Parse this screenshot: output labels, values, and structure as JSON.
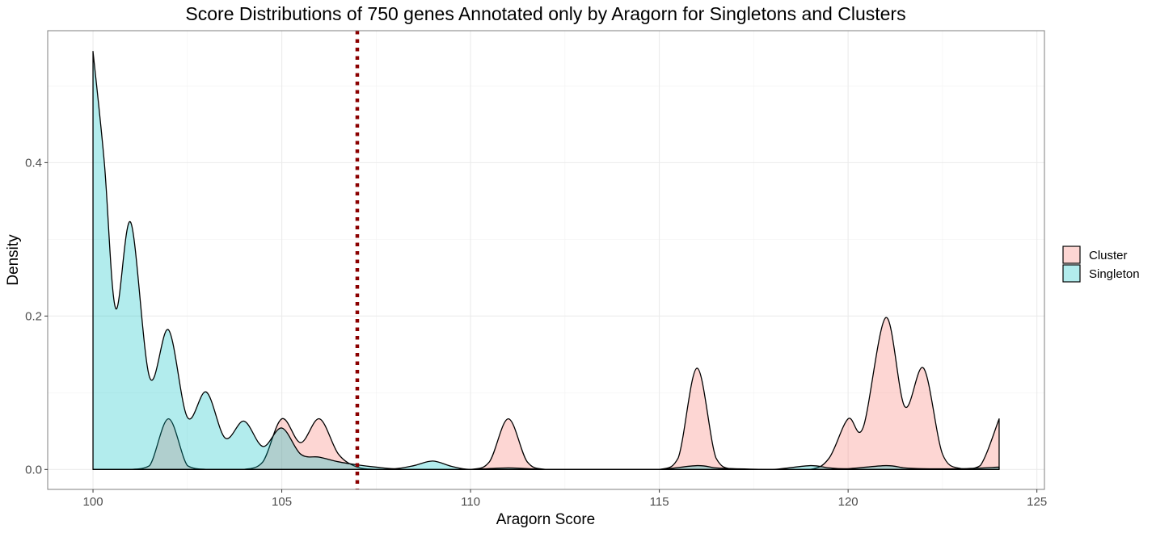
{
  "chart_data": {
    "type": "area",
    "title": "Score Distributions of 750 genes Annotated only by Aragorn for Singletons and Clusters",
    "xlabel": "Aragorn Score",
    "ylabel": "Density",
    "xlim": [
      98.8,
      125.2
    ],
    "ylim": [
      -0.026,
      0.572
    ],
    "x_ticks": [
      100,
      105,
      110,
      115,
      120,
      125
    ],
    "y_ticks": [
      0.0,
      0.2,
      0.4
    ],
    "x_tick_labels": [
      "100",
      "105",
      "110",
      "115",
      "120",
      "125"
    ],
    "y_tick_labels": [
      "0.0",
      "0.2",
      "0.4"
    ],
    "grid": true,
    "legend_position": "right",
    "reference_line": {
      "x": 107,
      "style": "dotted",
      "color": "#8b0000"
    },
    "series": [
      {
        "name": "Cluster",
        "fill": "#f8766d",
        "fill_opacity": 0.3,
        "points": [
          [
            100,
            0.0
          ],
          [
            100.5,
            0.0
          ],
          [
            101,
            0.0
          ],
          [
            101.5,
            0.005
          ],
          [
            102,
            0.066
          ],
          [
            102.5,
            0.005
          ],
          [
            103,
            0.0
          ],
          [
            103.5,
            0.0
          ],
          [
            104,
            0.0
          ],
          [
            104.5,
            0.01
          ],
          [
            105,
            0.066
          ],
          [
            105.5,
            0.035
          ],
          [
            106,
            0.066
          ],
          [
            106.5,
            0.02
          ],
          [
            107,
            0.003
          ],
          [
            107.5,
            0.0
          ],
          [
            108,
            0.0
          ],
          [
            109,
            0.0
          ],
          [
            110,
            0.0
          ],
          [
            110.5,
            0.01
          ],
          [
            111,
            0.066
          ],
          [
            111.5,
            0.01
          ],
          [
            112,
            0.0
          ],
          [
            113,
            0.0
          ],
          [
            114,
            0.0
          ],
          [
            115,
            0.0
          ],
          [
            115.5,
            0.015
          ],
          [
            116,
            0.132
          ],
          [
            116.5,
            0.015
          ],
          [
            117,
            0.0
          ],
          [
            118,
            0.0
          ],
          [
            119,
            0.0
          ],
          [
            119.5,
            0.015
          ],
          [
            120,
            0.066
          ],
          [
            120.4,
            0.055
          ],
          [
            121,
            0.198
          ],
          [
            121.5,
            0.082
          ],
          [
            122,
            0.132
          ],
          [
            122.5,
            0.02
          ],
          [
            123,
            0.001
          ],
          [
            123.5,
            0.005
          ],
          [
            124,
            0.066
          ]
        ]
      },
      {
        "name": "Singleton",
        "fill": "#00bfc4",
        "fill_opacity": 0.3,
        "points": [
          [
            100,
            0.545
          ],
          [
            100.3,
            0.4
          ],
          [
            100.6,
            0.21
          ],
          [
            101,
            0.322
          ],
          [
            101.5,
            0.12
          ],
          [
            102,
            0.182
          ],
          [
            102.5,
            0.068
          ],
          [
            103,
            0.101
          ],
          [
            103.5,
            0.041
          ],
          [
            104,
            0.063
          ],
          [
            104.5,
            0.03
          ],
          [
            105,
            0.054
          ],
          [
            105.5,
            0.02
          ],
          [
            106,
            0.016
          ],
          [
            106.5,
            0.01
          ],
          [
            107,
            0.006
          ],
          [
            107.5,
            0.003
          ],
          [
            108,
            0.001
          ],
          [
            108.5,
            0.005
          ],
          [
            109,
            0.011
          ],
          [
            109.5,
            0.004
          ],
          [
            110,
            0.0
          ],
          [
            111,
            0.002
          ],
          [
            112,
            0.0
          ],
          [
            113,
            0.0
          ],
          [
            114,
            0.0
          ],
          [
            115,
            0.0
          ],
          [
            116,
            0.005
          ],
          [
            116.5,
            0.002
          ],
          [
            117,
            0.001
          ],
          [
            118,
            0.0
          ],
          [
            119,
            0.005
          ],
          [
            119.5,
            0.002
          ],
          [
            120,
            0.001
          ],
          [
            121,
            0.005
          ],
          [
            121.5,
            0.002
          ],
          [
            122,
            0.001
          ],
          [
            123,
            0.001
          ],
          [
            124,
            0.003
          ]
        ]
      }
    ],
    "legend": [
      "Cluster",
      "Singleton"
    ]
  }
}
